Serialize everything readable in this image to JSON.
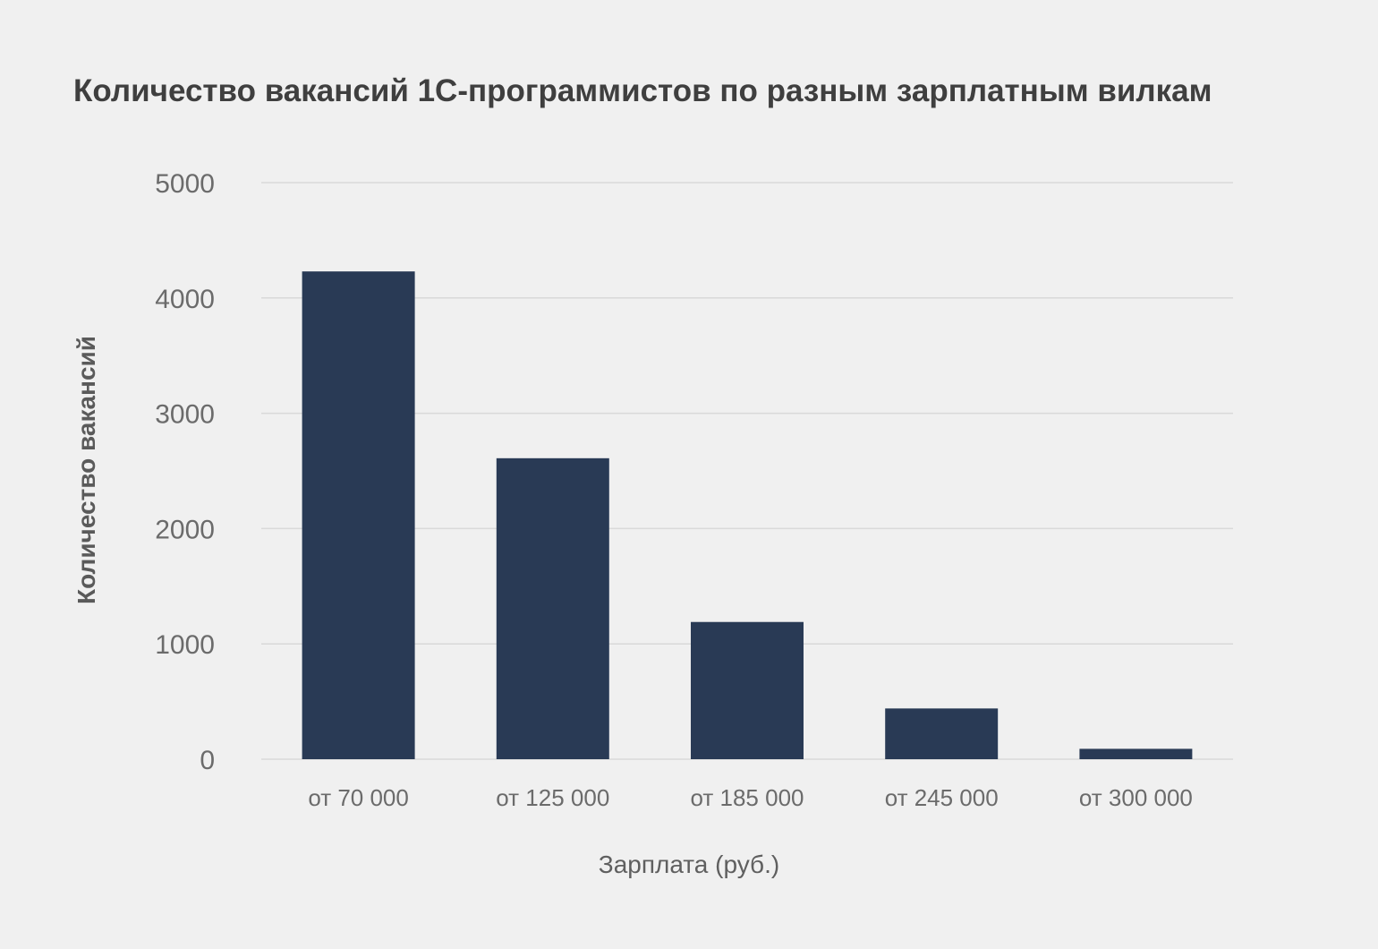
{
  "chart_data": {
    "type": "bar",
    "title": "Количество вакансий 1С-программистов по разным зарплатным вилкам",
    "xlabel": "Зарплата (руб.)",
    "ylabel": "Количество вакансий",
    "categories": [
      "от 70 000",
      "от 125 000",
      "от 185 000",
      "от 245 000",
      "от 300 000"
    ],
    "values": [
      4230,
      2610,
      1190,
      440,
      90
    ],
    "ylim": [
      0,
      5000
    ],
    "yticks": [
      0,
      1000,
      2000,
      3000,
      4000,
      5000
    ],
    "grid": true,
    "legend": "none",
    "colors": {
      "bar": "#293a55",
      "grid": "#d9d9d9",
      "background": "#f0f0f0"
    }
  }
}
